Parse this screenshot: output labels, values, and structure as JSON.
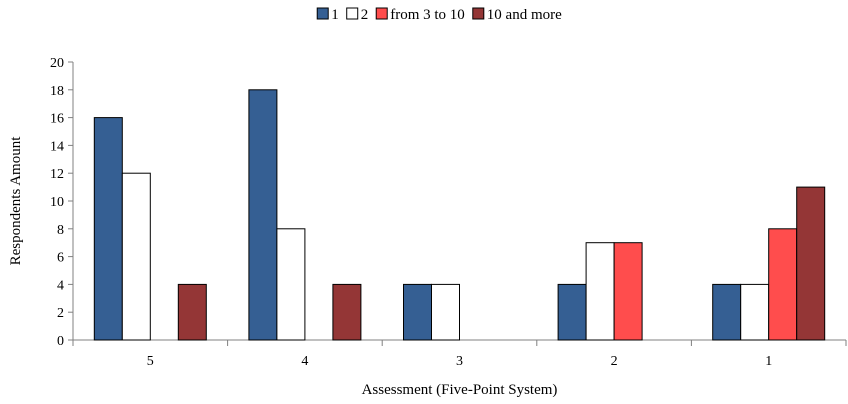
{
  "chart_data": {
    "type": "bar",
    "categories": [
      "5",
      "4",
      "3",
      "2",
      "1"
    ],
    "series": [
      {
        "name": "1",
        "values": [
          16,
          18,
          4,
          4,
          4
        ],
        "color": "#355f93"
      },
      {
        "name": "2",
        "values": [
          12,
          8,
          4,
          7,
          4
        ],
        "color": "#ffffff"
      },
      {
        "name": "from 3 to 10",
        "values": [
          0,
          0,
          0,
          7,
          8
        ],
        "color": "#ff4d4d"
      },
      {
        "name": "10 and more",
        "values": [
          4,
          4,
          0,
          0,
          11
        ],
        "color": "#943636"
      }
    ],
    "xlabel": "Assessment (Five-Point System)",
    "ylabel": "Respondents Amount",
    "ylim": [
      0,
      20
    ],
    "yticks": [
      0,
      2,
      4,
      6,
      8,
      10,
      12,
      14,
      16,
      18,
      20
    ],
    "legend_position": "top-center",
    "grid": false
  }
}
